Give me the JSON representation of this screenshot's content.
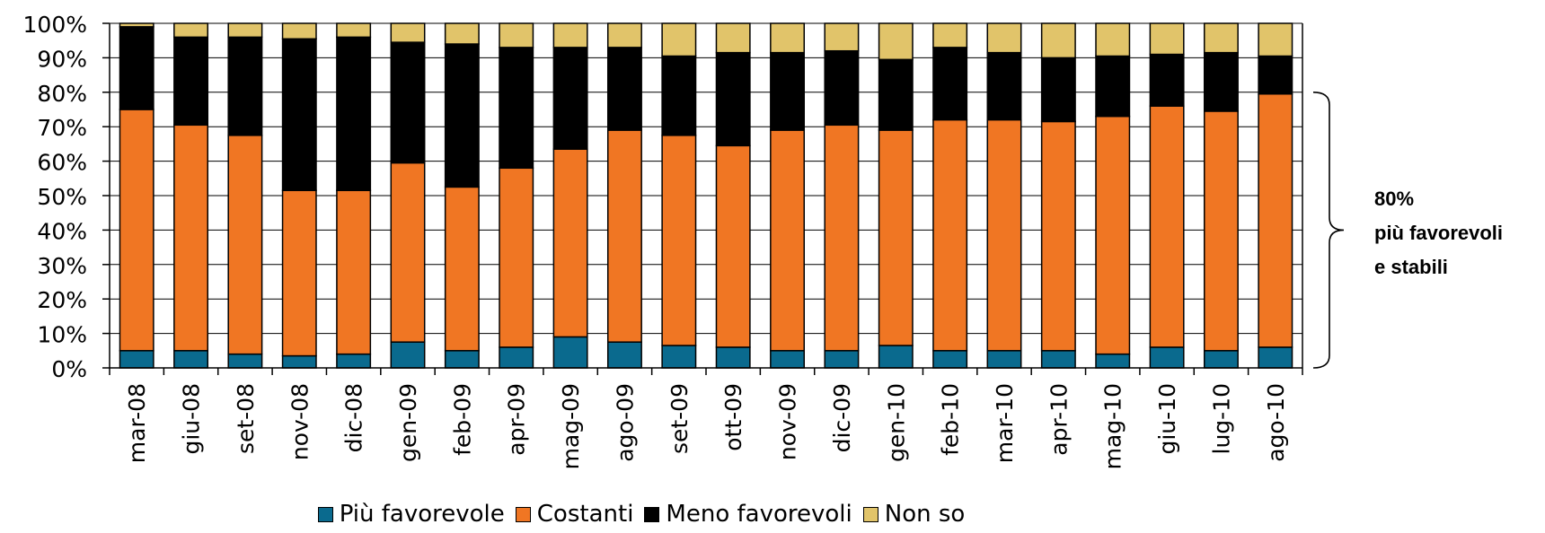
{
  "chart_data": {
    "type": "bar",
    "stacked": true,
    "categories": [
      "mar-08",
      "giu-08",
      "set-08",
      "nov-08",
      "dic-08",
      "gen-09",
      "feb-09",
      "apr-09",
      "mag-09",
      "ago-09",
      "set-09",
      "ott-09",
      "nov-09",
      "dic-09",
      "gen-10",
      "feb-10",
      "mar-10",
      "apr-10",
      "mag-10",
      "giu-10",
      "lug-10",
      "ago-10"
    ],
    "series": [
      {
        "name": "Più favorevole",
        "color": "#0a6a8e",
        "values": [
          5,
          5,
          4,
          3.5,
          4,
          7.5,
          5,
          6,
          9,
          7.5,
          6.5,
          6,
          5,
          5,
          6.5,
          5,
          5,
          5,
          4,
          6,
          5,
          6
        ]
      },
      {
        "name": "Costanti",
        "color": "#f07623",
        "values": [
          70,
          65.5,
          63.5,
          48,
          47.5,
          52,
          47.5,
          52,
          54.5,
          61.5,
          61,
          58.5,
          64,
          65.5,
          62.5,
          67,
          67,
          66.5,
          69,
          70,
          69.5,
          73.5
        ]
      },
      {
        "name": "Meno favorevoli",
        "color": "#000000",
        "values": [
          24,
          25.5,
          28.5,
          44,
          44.5,
          35,
          41.5,
          35,
          29.5,
          24,
          23,
          27,
          22.5,
          21.5,
          20.5,
          21,
          19.5,
          18.5,
          17.5,
          15,
          17,
          11
        ]
      },
      {
        "name": "Non so",
        "color": "#e1c46a",
        "values": [
          1,
          4,
          4,
          4.5,
          4,
          5.5,
          6,
          7,
          7,
          7,
          9.5,
          8.5,
          8.5,
          8,
          10.5,
          7,
          8.5,
          10,
          9.5,
          9,
          8.5,
          9.5
        ]
      }
    ],
    "ylim": [
      0,
      100
    ],
    "yticks": [
      "0%",
      "10%",
      "20%",
      "30%",
      "40%",
      "50%",
      "60%",
      "70%",
      "80%",
      "90%",
      "100%"
    ],
    "grid": true,
    "legend_position": "bottom",
    "annotation": {
      "bracket_range": [
        0,
        80
      ],
      "lines": [
        "80%",
        "più favorevoli",
        "e stabili"
      ]
    }
  }
}
